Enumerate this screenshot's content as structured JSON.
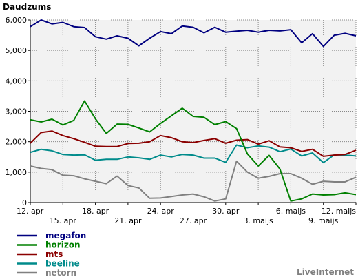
{
  "chart_data": {
    "type": "line",
    "title": "Daudzums",
    "credit": "LiveInternet",
    "ylim": [
      0,
      6000
    ],
    "y_ticks": [
      "0",
      "1,000",
      "2,000",
      "3,000",
      "4,000",
      "5,000",
      "6,000"
    ],
    "y_tick_values": [
      0,
      1000,
      2000,
      3000,
      4000,
      5000,
      6000
    ],
    "x_count": 31,
    "x_tick_labels": [
      {
        "index": 0,
        "label": "12. apr",
        "row": 1
      },
      {
        "index": 3,
        "label": "15. apr",
        "row": 2
      },
      {
        "index": 6,
        "label": "18. apr",
        "row": 1
      },
      {
        "index": 9,
        "label": "21. apr",
        "row": 2
      },
      {
        "index": 12,
        "label": "24. apr",
        "row": 1
      },
      {
        "index": 15,
        "label": "27. apr",
        "row": 2
      },
      {
        "index": 18,
        "label": "30. apr",
        "row": 1
      },
      {
        "index": 21,
        "label": "3. maijs",
        "row": 2
      },
      {
        "index": 24,
        "label": "6. maijs",
        "row": 1
      },
      {
        "index": 27,
        "label": "9. maijs",
        "row": 2
      },
      {
        "index": 30,
        "label": "12. maijs",
        "row": 1
      }
    ],
    "grid": true,
    "legend_position": "bottom-left",
    "series": [
      {
        "name": "megafon",
        "color": "#000080",
        "values": [
          5780,
          6000,
          5870,
          5920,
          5780,
          5750,
          5450,
          5370,
          5480,
          5400,
          5150,
          5400,
          5620,
          5550,
          5800,
          5760,
          5580,
          5760,
          5600,
          5630,
          5660,
          5600,
          5660,
          5640,
          5680,
          5250,
          5550,
          5130,
          5500,
          5560,
          5480
        ]
      },
      {
        "name": "horizon",
        "color": "#008000",
        "values": [
          2720,
          2650,
          2740,
          2550,
          2700,
          3340,
          2750,
          2270,
          2580,
          2570,
          2450,
          2320,
          2600,
          2850,
          3100,
          2830,
          2800,
          2560,
          2660,
          2430,
          1600,
          1200,
          1550,
          1100,
          50,
          120,
          280,
          250,
          260,
          320,
          260
        ]
      },
      {
        "name": "mts",
        "color": "#8b0000",
        "values": [
          1950,
          2300,
          2350,
          2200,
          2100,
          1980,
          1850,
          1840,
          1840,
          1940,
          1950,
          2000,
          2200,
          2130,
          2000,
          1970,
          2040,
          2100,
          1950,
          2050,
          2070,
          1920,
          2030,
          1830,
          1800,
          1680,
          1750,
          1520,
          1560,
          1580,
          1720
        ]
      },
      {
        "name": "beeline",
        "color": "#008b8b",
        "values": [
          1650,
          1750,
          1700,
          1580,
          1560,
          1570,
          1390,
          1420,
          1420,
          1500,
          1470,
          1420,
          1560,
          1500,
          1580,
          1560,
          1460,
          1460,
          1320,
          1890,
          1800,
          1860,
          1820,
          1670,
          1760,
          1530,
          1630,
          1310,
          1570,
          1560,
          1530
        ]
      },
      {
        "name": "netorn",
        "color": "#808080",
        "values": [
          1200,
          1120,
          1080,
          900,
          880,
          780,
          700,
          620,
          870,
          560,
          480,
          140,
          150,
          200,
          250,
          280,
          190,
          50,
          120,
          1360,
          1000,
          800,
          860,
          950,
          950,
          800,
          600,
          700,
          680,
          680,
          830
        ]
      }
    ]
  }
}
